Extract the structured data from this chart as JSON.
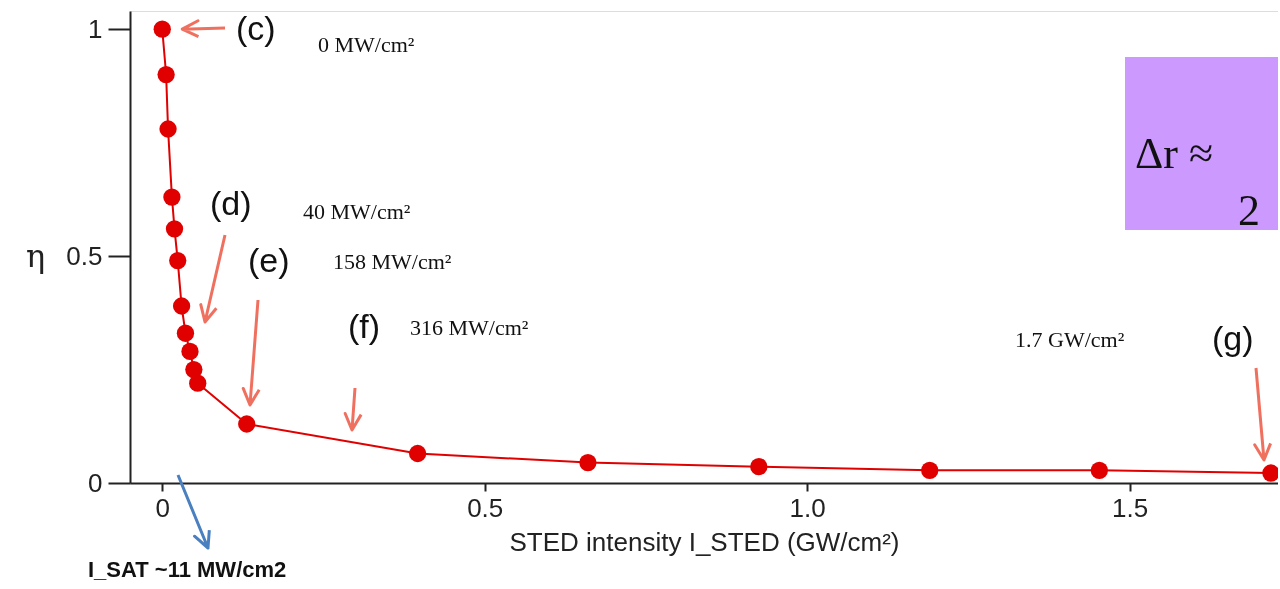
{
  "chart_data": {
    "type": "line",
    "xlabel": "STED intensity I_STED (GW/cm²)",
    "ylabel": "η",
    "series": [
      {
        "color": "#e00000",
        "x": [
          0,
          0.006,
          0.009,
          0.015,
          0.019,
          0.024,
          0.03,
          0.036,
          0.043,
          0.049,
          0.055,
          0.131,
          0.396,
          0.66,
          0.925,
          1.19,
          1.453,
          1.719
        ],
        "values": [
          1.0,
          0.9,
          0.78,
          0.63,
          0.56,
          0.49,
          0.39,
          0.33,
          0.29,
          0.25,
          0.22,
          0.13,
          0.065,
          0.045,
          0.036,
          0.028,
          0.028,
          0.022
        ]
      }
    ],
    "xlim": [
      -0.05,
      1.73
    ],
    "ylim": [
      0,
      1.04
    ],
    "xticks": [
      0,
      0.5,
      {
        "value": 1,
        "label": "1.0"
      },
      1.5
    ],
    "yticks": [
      0,
      0.5,
      1
    ],
    "marker": "circle",
    "line_style": "solid",
    "grid": false,
    "annotations": [
      {
        "text": "(c)",
        "x": 0,
        "y": 1.0
      },
      "0 MW/cm²",
      "(d)",
      "40 MW/cm²",
      "(e)",
      "158 MW/cm²",
      "(f)",
      "316 MW/cm²",
      "1.7 GW/cm²",
      "(g)",
      "I_SAT ~11 MW/cm2",
      "Δr ≈",
      "2"
    ]
  }
}
